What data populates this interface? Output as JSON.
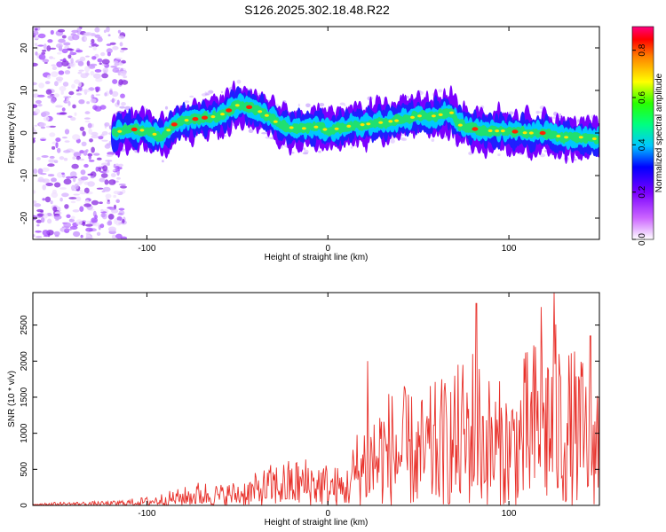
{
  "title": "S126.2025.302.18.48.R22",
  "chart_data": [
    {
      "type": "heatmap",
      "xlabel": "Height of straight line (km)",
      "ylabel": "Frequency (Hz)",
      "xlim": [
        -163,
        150
      ],
      "ylim": [
        -25,
        25
      ],
      "xticks": [
        -100,
        0,
        100
      ],
      "xtick_labels": [
        "-100",
        "0",
        "100"
      ],
      "yticks": [
        -20,
        -10,
        0,
        10,
        20
      ],
      "ytick_labels": [
        "-20",
        "-10",
        "0",
        "10",
        "20"
      ],
      "noise_region": [
        -163,
        -112
      ],
      "ridge": {
        "x": [
          -118,
          -110,
          -100,
          -92,
          -85,
          -78,
          -70,
          -60,
          -50,
          -42,
          -35,
          -30,
          -25,
          -15,
          -5,
          0,
          10,
          20,
          30,
          40,
          50,
          60,
          68,
          72,
          80,
          90,
          100,
          110,
          120,
          130,
          140,
          150
        ],
        "y": [
          0,
          1,
          0.5,
          -1,
          2,
          3,
          3.5,
          4,
          6.5,
          6,
          4.5,
          3,
          1.5,
          1,
          1.5,
          0.5,
          1.5,
          2,
          2.5,
          3,
          4,
          4,
          5,
          2,
          1,
          0.5,
          0.5,
          0,
          0,
          -1,
          -1,
          -1.5
        ]
      },
      "colorbar": {
        "label": "Normalized spectral amplitude",
        "range": [
          0,
          0.9
        ],
        "ticks": [
          0,
          0.2,
          0.4,
          0.6,
          0.8
        ],
        "tick_labels": [
          "0.0",
          "0.2",
          "0.4",
          "0.6",
          "0.8"
        ]
      }
    },
    {
      "type": "line",
      "xlabel": "Height of straight line (km)",
      "ylabel": "SNR (10 * v/v)",
      "xlim": [
        -163,
        150
      ],
      "ylim": [
        0,
        2950
      ],
      "xticks": [
        -100,
        0,
        100
      ],
      "xtick_labels": [
        "-100",
        "0",
        "100"
      ],
      "yticks": [
        0,
        500,
        1000,
        1500,
        2000,
        2500
      ],
      "ytick_labels": [
        "0",
        "500",
        "1000",
        "1500",
        "2000",
        "2500"
      ],
      "series": [
        {
          "name": "SNR",
          "color": "#e8302a",
          "envelope_x": [
            -163,
            -120,
            -100,
            -80,
            -70,
            -60,
            -50,
            -40,
            -30,
            -20,
            -10,
            0,
            10,
            15,
            20,
            30,
            40,
            50,
            60,
            70,
            80,
            90,
            100,
            110,
            118,
            125,
            130,
            140,
            150
          ],
          "envelope_y": [
            40,
            60,
            120,
            250,
            350,
            300,
            350,
            450,
            600,
            650,
            700,
            600,
            500,
            1000,
            1300,
            1600,
            1700,
            1500,
            1750,
            1900,
            2300,
            1800,
            1700,
            2200,
            2500,
            2600,
            2300,
            2100,
            1950
          ],
          "peaks": [
            {
              "x": 22,
              "y": 2000
            },
            {
              "x": 82,
              "y": 2800
            },
            {
              "x": 118,
              "y": 2750
            },
            {
              "x": 125,
              "y": 2950
            },
            {
              "x": 145,
              "y": 2350
            },
            {
              "x": 150,
              "y": 2200
            }
          ]
        }
      ]
    }
  ]
}
